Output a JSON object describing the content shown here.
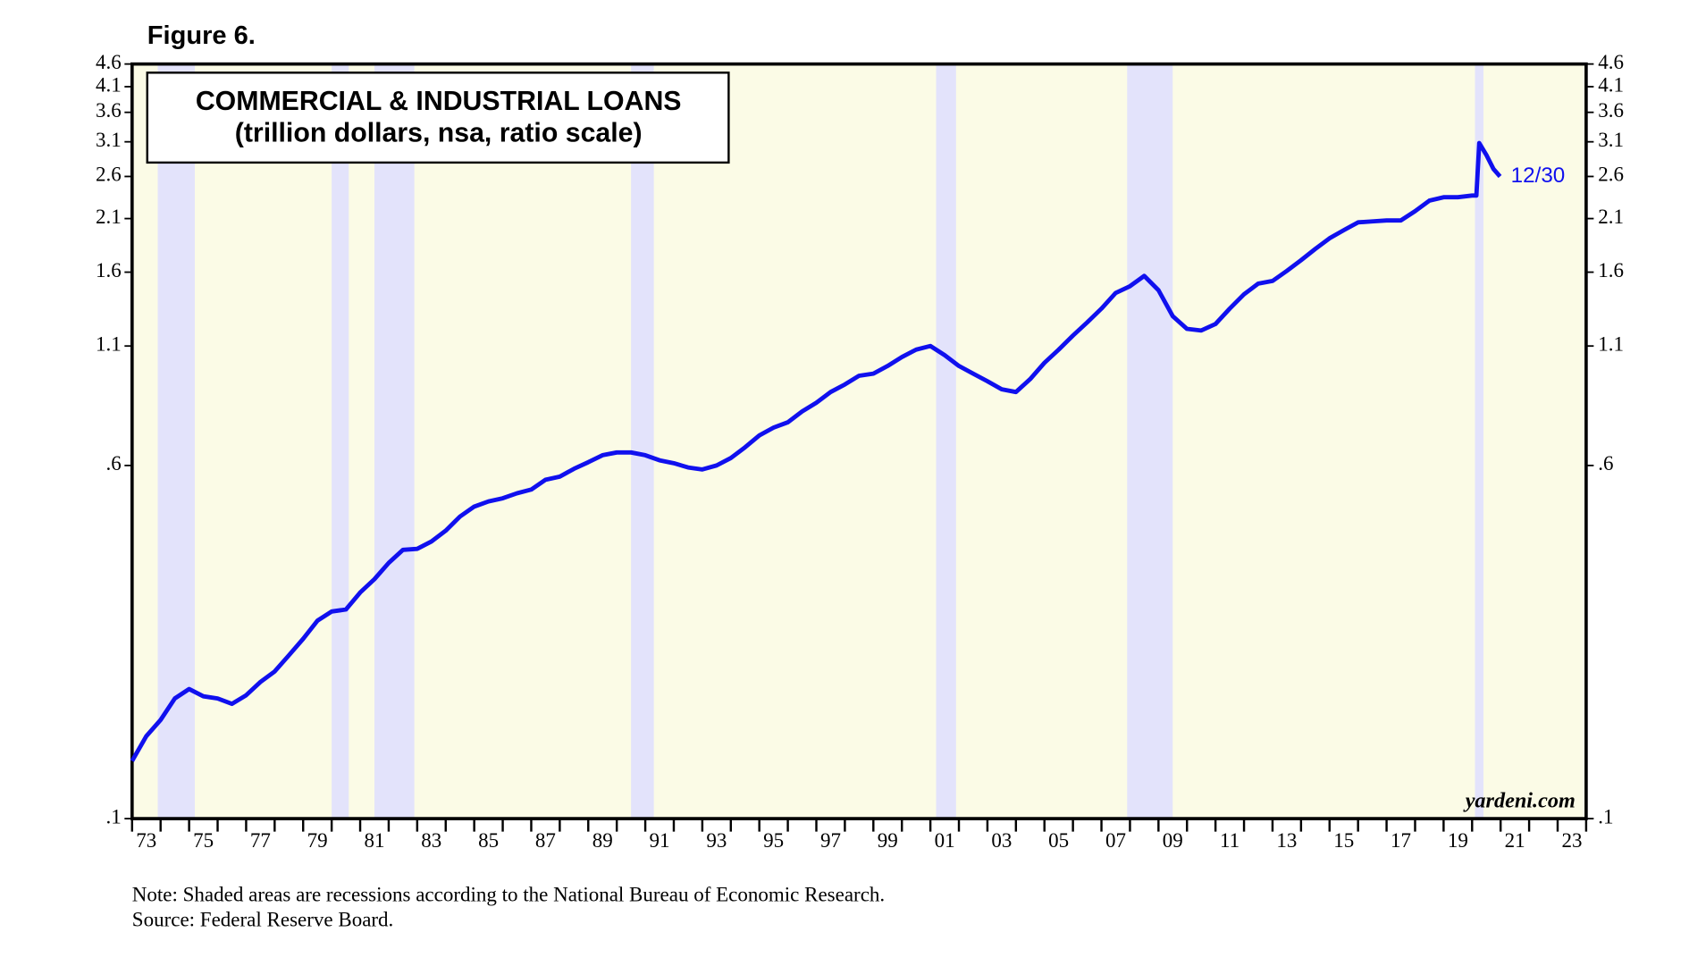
{
  "chart_data": {
    "type": "line",
    "figure_label": "Figure 6.",
    "title": "COMMERCIAL & INDUSTRIAL LOANS",
    "subtitle": "(trillion dollars, nsa, ratio scale)",
    "annotation": "12/30",
    "watermark": "yardeni.com",
    "notes": [
      "Note: Shaded areas are recessions according to the National Bureau of Economic Research.",
      "Source: Federal Reserve Board."
    ],
    "log_scale": true,
    "xlim": [
      1973,
      2024
    ],
    "ylim": [
      0.1,
      4.6
    ],
    "yticks": [
      {
        "value": 0.1,
        "label": ".1"
      },
      {
        "value": 0.6,
        "label": ".6"
      },
      1.1,
      1.6,
      2.1,
      2.6,
      3.1,
      3.6,
      4.1,
      4.6
    ],
    "xticks": [
      {
        "value": 1973,
        "label": "73"
      },
      {
        "value": 1975,
        "label": "75"
      },
      {
        "value": 1977,
        "label": "77"
      },
      {
        "value": 1979,
        "label": "79"
      },
      {
        "value": 1981,
        "label": "81"
      },
      {
        "value": 1983,
        "label": "83"
      },
      {
        "value": 1985,
        "label": "85"
      },
      {
        "value": 1987,
        "label": "87"
      },
      {
        "value": 1989,
        "label": "89"
      },
      {
        "value": 1991,
        "label": "91"
      },
      {
        "value": 1993,
        "label": "93"
      },
      {
        "value": 1995,
        "label": "95"
      },
      {
        "value": 1997,
        "label": "97"
      },
      {
        "value": 1999,
        "label": "99"
      },
      {
        "value": 2001,
        "label": "01"
      },
      {
        "value": 2003,
        "label": "03"
      },
      {
        "value": 2005,
        "label": "05"
      },
      {
        "value": 2007,
        "label": "07"
      },
      {
        "value": 2009,
        "label": "09"
      },
      {
        "value": 2011,
        "label": "11"
      },
      {
        "value": 2013,
        "label": "13"
      },
      {
        "value": 2015,
        "label": "15"
      },
      {
        "value": 2017,
        "label": "17"
      },
      {
        "value": 2019,
        "label": "19"
      },
      {
        "value": 2021,
        "label": "21"
      },
      {
        "value": 2023,
        "label": "23"
      }
    ],
    "xminor_ticks": [
      1974,
      1976,
      1978,
      1980,
      1982,
      1984,
      1986,
      1988,
      1990,
      1992,
      1994,
      1996,
      1998,
      2000,
      2002,
      2004,
      2006,
      2008,
      2010,
      2012,
      2014,
      2016,
      2018,
      2020,
      2022,
      2024
    ],
    "recessions": [
      [
        1973.9,
        1975.2
      ],
      [
        1980.0,
        1980.6
      ],
      [
        1981.5,
        1982.9
      ],
      [
        1990.5,
        1991.3
      ],
      [
        2001.2,
        2001.9
      ],
      [
        2007.9,
        2009.5
      ],
      [
        2020.1,
        2020.4
      ]
    ],
    "plot_background": "#fbfbe6",
    "recession_color": "#e3e3fb",
    "x": [
      1973.0,
      1973.5,
      1974.0,
      1974.5,
      1975.0,
      1975.5,
      1976.0,
      1976.5,
      1977.0,
      1977.5,
      1978.0,
      1978.5,
      1979.0,
      1979.5,
      1980.0,
      1980.5,
      1981.0,
      1981.5,
      1982.0,
      1982.5,
      1983.0,
      1983.5,
      1984.0,
      1984.5,
      1985.0,
      1985.5,
      1986.0,
      1986.5,
      1987.0,
      1987.5,
      1988.0,
      1988.5,
      1989.0,
      1989.5,
      1990.0,
      1990.5,
      1991.0,
      1991.5,
      1992.0,
      1992.5,
      1993.0,
      1993.5,
      1994.0,
      1994.5,
      1995.0,
      1995.5,
      1996.0,
      1996.5,
      1997.0,
      1997.5,
      1998.0,
      1998.5,
      1999.0,
      1999.5,
      2000.0,
      2000.5,
      2001.0,
      2001.5,
      2002.0,
      2002.5,
      2003.0,
      2003.5,
      2004.0,
      2004.5,
      2005.0,
      2005.5,
      2006.0,
      2006.5,
      2007.0,
      2007.5,
      2008.0,
      2008.5,
      2009.0,
      2009.5,
      2010.0,
      2010.5,
      2011.0,
      2011.5,
      2012.0,
      2012.5,
      2013.0,
      2013.5,
      2014.0,
      2014.5,
      2015.0,
      2015.5,
      2016.0,
      2016.5,
      2017.0,
      2017.5,
      2018.0,
      2018.5,
      2019.0,
      2019.5,
      2020.0,
      2020.15,
      2020.25,
      2020.5,
      2020.75,
      2020.98
    ],
    "series": [
      {
        "name": "C&I loans",
        "color": "#1010ee",
        "values": [
          0.134,
          0.152,
          0.165,
          0.184,
          0.193,
          0.186,
          0.184,
          0.179,
          0.187,
          0.2,
          0.211,
          0.229,
          0.249,
          0.273,
          0.286,
          0.289,
          0.315,
          0.337,
          0.366,
          0.391,
          0.393,
          0.408,
          0.431,
          0.463,
          0.487,
          0.5,
          0.508,
          0.521,
          0.531,
          0.558,
          0.567,
          0.59,
          0.61,
          0.632,
          0.641,
          0.641,
          0.632,
          0.616,
          0.607,
          0.594,
          0.588,
          0.6,
          0.623,
          0.658,
          0.699,
          0.727,
          0.747,
          0.789,
          0.825,
          0.871,
          0.905,
          0.946,
          0.956,
          0.994,
          1.04,
          1.08,
          1.1,
          1.05,
          0.994,
          0.956,
          0.92,
          0.883,
          0.871,
          0.93,
          1.01,
          1.08,
          1.16,
          1.24,
          1.33,
          1.44,
          1.49,
          1.57,
          1.46,
          1.28,
          1.2,
          1.19,
          1.23,
          1.33,
          1.43,
          1.51,
          1.53,
          1.61,
          1.7,
          1.8,
          1.9,
          1.98,
          2.06,
          2.07,
          2.08,
          2.08,
          2.18,
          2.3,
          2.34,
          2.34,
          2.36,
          2.36,
          3.08,
          2.9,
          2.7,
          2.6
        ]
      }
    ]
  }
}
